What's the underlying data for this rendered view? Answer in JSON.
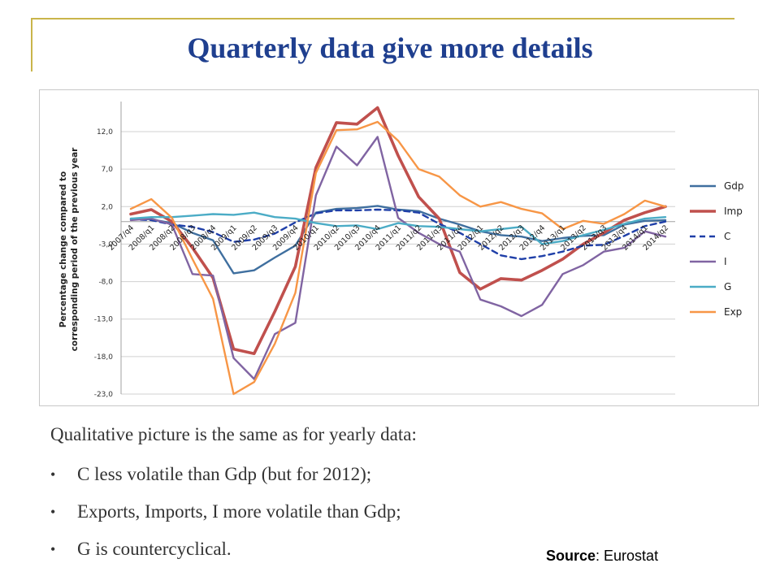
{
  "slide": {
    "title": "Quarterly data give more details",
    "intro": "Qualitative picture is the same as for yearly data:",
    "bullets": [
      "C less volatile than Gdp (but for 2012);",
      "Exports, Imports, I more volatile than Gdp;",
      "G is countercyclical."
    ],
    "source_label": "Source",
    "source_value": ": Eurostat"
  },
  "chart_data": {
    "type": "line",
    "title": "",
    "ylabel": "Percentage change compared to corresponding period of the previous year",
    "ylabel_lines": [
      "Percentage change compared to",
      "corresponding period of the previous year"
    ],
    "xlabel": "",
    "ylim": [
      -23,
      17
    ],
    "yticks": [
      12,
      7,
      2,
      -3,
      -8,
      -13,
      -18,
      -23
    ],
    "ytick_labels": [
      "12,0",
      "7,0",
      "2,0",
      "-3,0",
      "-8,0",
      "-13,0",
      "-18,0",
      "-23,0"
    ],
    "grid": "horizontal",
    "legend_position": "right",
    "categories": [
      "2007/q4",
      "2008/q1",
      "2008/q2",
      "2008/q3",
      "2008/q4",
      "2009/q1",
      "2009/q2",
      "2009/q3",
      "2009/q4",
      "2010/q1",
      "2010/q2",
      "2010/q3",
      "2010/q4",
      "2011/q1",
      "2011/q2",
      "2011/q3",
      "2011/q4",
      "2012/q1",
      "2012/q2",
      "2012/q3",
      "2012/q4",
      "2013/q1",
      "2013/q2",
      "2013/q3",
      "2013/q4",
      "2014/q1",
      "2014/q2"
    ],
    "series": [
      {
        "name": "Gdp",
        "color": "#3f6f9f",
        "dash": false,
        "values": [
          0.4,
          0.3,
          -0.2,
          -1.5,
          -2.5,
          -6.9,
          -6.5,
          -4.8,
          -3.2,
          1.2,
          1.7,
          1.8,
          2.1,
          1.6,
          1.4,
          0.4,
          -0.4,
          -1.3,
          -1.8,
          -2.0,
          -2.6,
          -2.2,
          -1.9,
          -1.8,
          -0.4,
          0.1,
          0.2
        ]
      },
      {
        "name": "Imp",
        "color": "#c0504d",
        "dash": false,
        "values": [
          1.0,
          1.6,
          0.0,
          -3.5,
          -7.5,
          -17.0,
          -17.6,
          -12.0,
          -6.0,
          7.2,
          13.2,
          13.0,
          15.2,
          8.8,
          3.3,
          0.4,
          -6.8,
          -9.0,
          -7.6,
          -7.8,
          -6.5,
          -5.0,
          -3.0,
          -1.5,
          0.2,
          1.2,
          2.0
        ]
      },
      {
        "name": "C",
        "color": "#1f3fa8",
        "dash": true,
        "values": [
          0.3,
          0.2,
          -0.4,
          -0.7,
          -1.4,
          -2.7,
          -2.4,
          -1.6,
          -0.1,
          1.1,
          1.5,
          1.5,
          1.6,
          1.5,
          1.2,
          -0.3,
          -1.5,
          -3.0,
          -4.5,
          -5.0,
          -4.6,
          -4.0,
          -3.2,
          -3.1,
          -1.9,
          -0.6,
          0.0
        ]
      },
      {
        "name": "I",
        "color": "#8064a2",
        "dash": false,
        "values": [
          0.2,
          0.4,
          -0.4,
          -7.0,
          -7.2,
          -18.2,
          -21.0,
          -15.0,
          -13.5,
          3.5,
          10.0,
          7.5,
          11.3,
          0.5,
          -1.5,
          -3.0,
          -4.0,
          -10.4,
          -11.3,
          -12.6,
          -11.1,
          -7.0,
          -5.8,
          -4.0,
          -3.5,
          -1.3,
          -2.0
        ]
      },
      {
        "name": "G",
        "color": "#4bacc6",
        "dash": false,
        "values": [
          0.4,
          0.6,
          0.6,
          0.8,
          1.0,
          0.9,
          1.2,
          0.6,
          0.4,
          -0.2,
          -0.6,
          -0.5,
          -1.0,
          -0.2,
          -0.6,
          -0.7,
          -1.0,
          -1.3,
          -1.0,
          -0.7,
          -3.0,
          -2.6,
          -1.8,
          -1.1,
          -0.3,
          0.4,
          0.6
        ]
      },
      {
        "name": "Exp",
        "color": "#f79646",
        "dash": false,
        "values": [
          1.7,
          3.0,
          0.5,
          -5.0,
          -10.3,
          -23.0,
          -21.4,
          -16.3,
          -9.5,
          6.5,
          12.2,
          12.3,
          13.3,
          10.8,
          7.0,
          6.0,
          3.5,
          2.0,
          2.6,
          1.7,
          1.1,
          -1.0,
          0.1,
          -0.3,
          1.0,
          2.8,
          2.0
        ]
      }
    ]
  }
}
